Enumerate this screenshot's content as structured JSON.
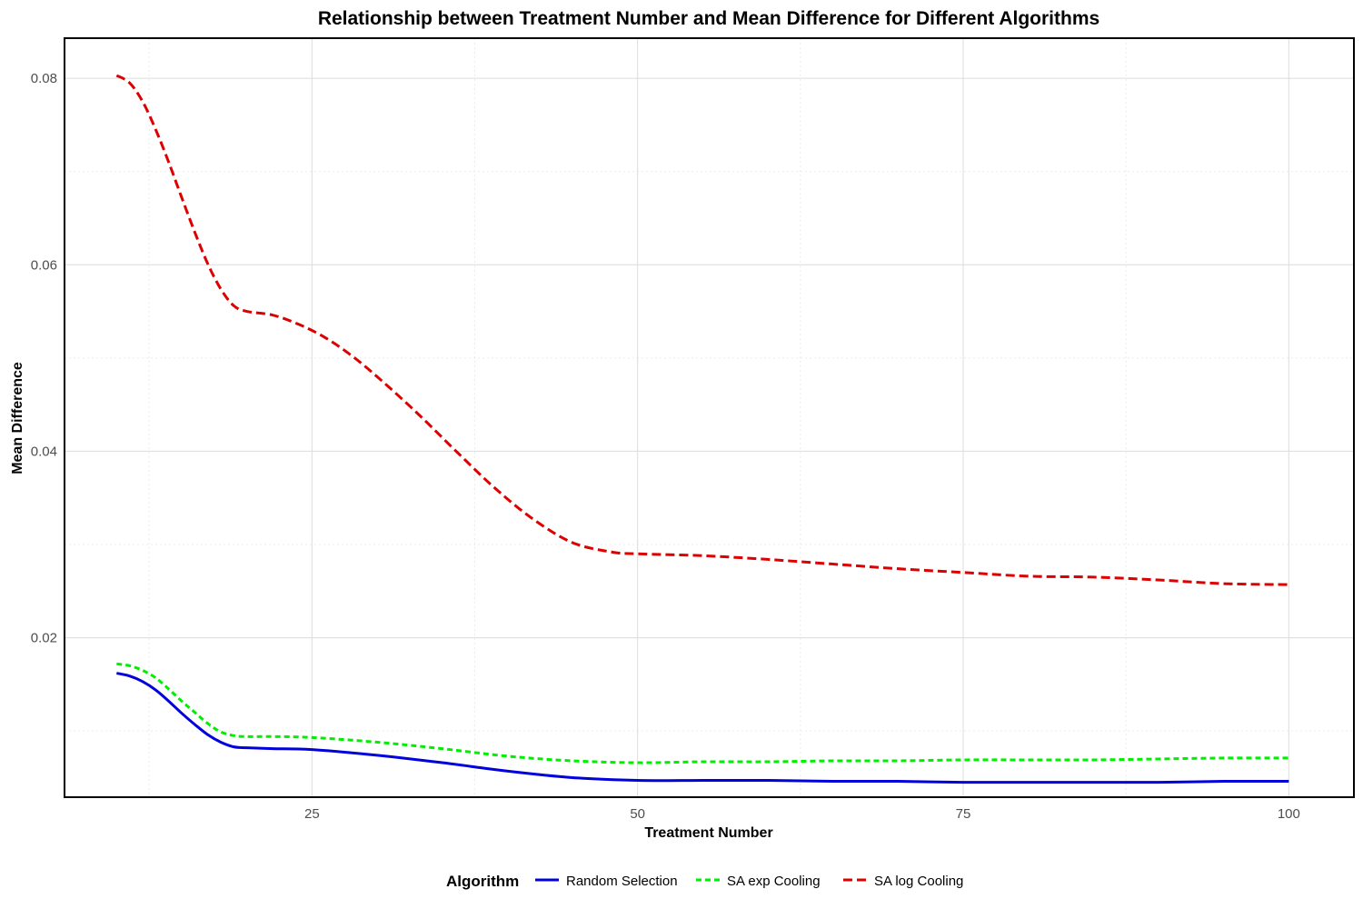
{
  "chart_data": {
    "type": "line",
    "title": "Relationship between Treatment Number and Mean Difference for Different Algorithms",
    "xlabel": "Treatment Number",
    "ylabel": "Mean Difference",
    "xlim": [
      6,
      105
    ],
    "ylim": [
      0.0029,
      0.0843
    ],
    "x_ticks": [
      25,
      50,
      75,
      100
    ],
    "x_tick_labels": [
      "25",
      "50",
      "75",
      "100"
    ],
    "y_ticks": [
      0.02,
      0.04,
      0.06,
      0.08
    ],
    "y_tick_labels": [
      "0.02",
      "0.04",
      "0.06",
      "0.08"
    ],
    "grid": true,
    "legend": {
      "title": "Algorithm",
      "position": "bottom"
    },
    "series": [
      {
        "name": "Random Selection",
        "color": "#0000dd",
        "dash": "solid",
        "x": [
          10,
          11,
          12,
          13,
          14,
          15,
          16,
          17,
          18,
          19,
          20,
          22,
          25,
          30,
          35,
          40,
          45,
          50,
          55,
          60,
          65,
          70,
          75,
          80,
          85,
          90,
          95,
          100
        ],
        "y": [
          0.0162,
          0.0159,
          0.0153,
          0.0144,
          0.0132,
          0.0119,
          0.0107,
          0.0096,
          0.0088,
          0.0083,
          0.0082,
          0.0081,
          0.008,
          0.0074,
          0.0066,
          0.0057,
          0.005,
          0.0047,
          0.0047,
          0.0047,
          0.0046,
          0.0046,
          0.0045,
          0.0045,
          0.0045,
          0.0045,
          0.0046,
          0.0046
        ]
      },
      {
        "name": "SA exp Cooling",
        "color": "#00ee00",
        "dash": "dashed",
        "x": [
          10,
          11,
          12,
          13,
          14,
          15,
          16,
          17,
          18,
          19,
          20,
          22,
          25,
          30,
          35,
          40,
          45,
          50,
          55,
          60,
          65,
          70,
          75,
          80,
          85,
          90,
          95,
          100
        ],
        "y": [
          0.0172,
          0.017,
          0.0165,
          0.0157,
          0.0145,
          0.0132,
          0.012,
          0.0108,
          0.0099,
          0.0095,
          0.0094,
          0.0094,
          0.0093,
          0.0088,
          0.0081,
          0.0073,
          0.0068,
          0.0066,
          0.0067,
          0.0067,
          0.0068,
          0.0068,
          0.0069,
          0.0069,
          0.0069,
          0.007,
          0.0071,
          0.0071
        ]
      },
      {
        "name": "SA log Cooling",
        "color": "#dd0000",
        "dash": "longdash",
        "x": [
          10,
          11,
          12,
          13,
          14,
          15,
          16,
          17,
          18,
          19,
          20,
          22,
          24,
          26,
          28,
          30,
          33,
          36,
          39,
          42,
          45,
          48,
          50,
          55,
          60,
          65,
          70,
          75,
          80,
          85,
          90,
          95,
          100
        ],
        "y": [
          0.0803,
          0.0795,
          0.0775,
          0.0745,
          0.071,
          0.0672,
          0.0635,
          0.0601,
          0.0574,
          0.0556,
          0.055,
          0.0546,
          0.0536,
          0.0522,
          0.0503,
          0.048,
          0.0442,
          0.0401,
          0.0361,
          0.0327,
          0.0302,
          0.0292,
          0.029,
          0.0288,
          0.0284,
          0.0279,
          0.0274,
          0.027,
          0.0266,
          0.0265,
          0.0262,
          0.0258,
          0.0257
        ]
      }
    ]
  }
}
